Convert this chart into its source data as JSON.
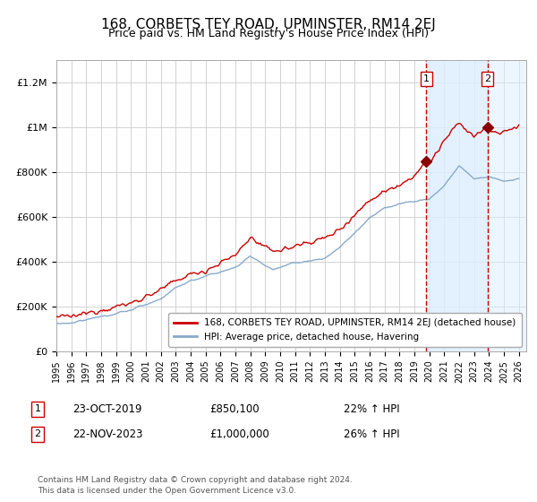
{
  "title": "168, CORBETS TEY ROAD, UPMINSTER, RM14 2EJ",
  "subtitle": "Price paid vs. HM Land Registry's House Price Index (HPI)",
  "title_fontsize": 11,
  "subtitle_fontsize": 9,
  "background_color": "#ffffff",
  "plot_bg_color": "#ffffff",
  "grid_color": "#cccccc",
  "red_line_color": "#cc0000",
  "blue_line_color": "#88aacc",
  "sale1_x": 2019.81,
  "sale1_y": 850100,
  "sale2_x": 2023.9,
  "sale2_y": 1000000,
  "vline_color": "#cc0000",
  "shade_color": "#ddeeff",
  "ylim": [
    0,
    1300000
  ],
  "xlim_left": 1995.0,
  "xlim_right": 2026.5,
  "yticks": [
    0,
    200000,
    400000,
    600000,
    800000,
    1000000,
    1200000
  ],
  "ytick_labels": [
    "£0",
    "£200K",
    "£400K",
    "£600K",
    "£800K",
    "£1M",
    "£1.2M"
  ],
  "xtick_years": [
    1995,
    1996,
    1997,
    1998,
    1999,
    2000,
    2001,
    2002,
    2003,
    2004,
    2005,
    2006,
    2007,
    2008,
    2009,
    2010,
    2011,
    2012,
    2013,
    2014,
    2015,
    2016,
    2017,
    2018,
    2019,
    2020,
    2021,
    2022,
    2023,
    2024,
    2025,
    2026
  ],
  "legend_red_label": "168, CORBETS TEY ROAD, UPMINSTER, RM14 2EJ (detached house)",
  "legend_blue_label": "HPI: Average price, detached house, Havering",
  "note1_label": "1",
  "note1_date": "23-OCT-2019",
  "note1_price": "£850,100",
  "note1_hpi": "22% ↑ HPI",
  "note2_label": "2",
  "note2_date": "22-NOV-2023",
  "note2_price": "£1,000,000",
  "note2_hpi": "26% ↑ HPI",
  "footer": "Contains HM Land Registry data © Crown copyright and database right 2024.\nThis data is licensed under the Open Government Licence v3.0."
}
